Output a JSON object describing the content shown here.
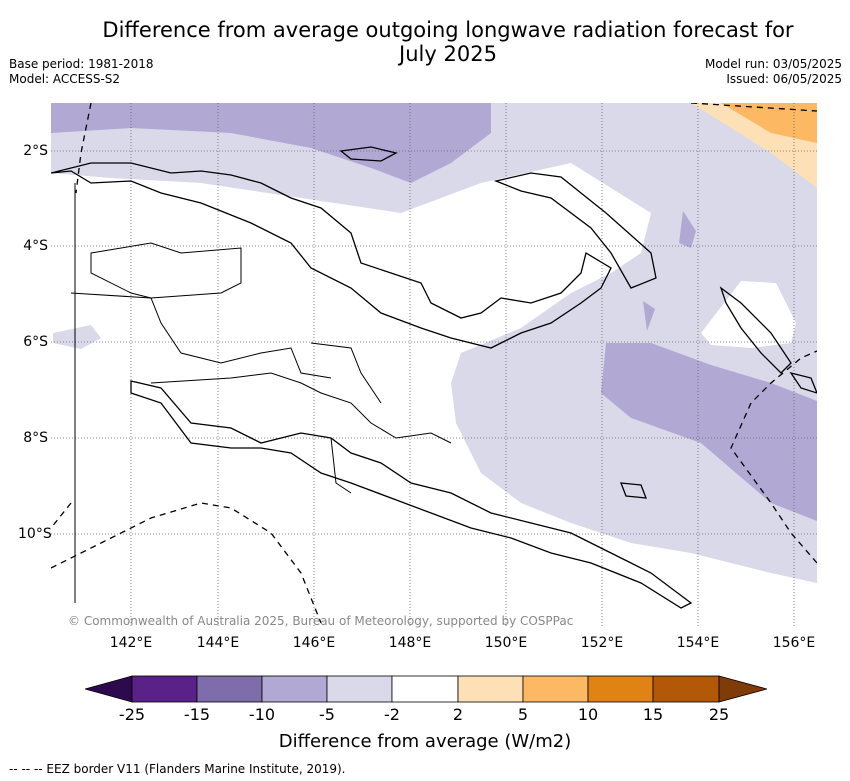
{
  "title": "Difference from average outgoing longwave radiation forecast for July 2025",
  "base_period": "Base period: 1981-2018",
  "model": "Model: ACCESS-S2",
  "model_run": "Model run: 03/05/2025",
  "issued": "Issued: 06/05/2025",
  "copyright": "© Commonwealth of Australia 2025, Bureau of Meteorology, supported by COSPPac",
  "eez_note": "--  --  -- EEZ border V11 (Flanders Marine Institute, 2019).",
  "colorbar_label": "Difference from average (W/m2)",
  "lon_labels": [
    "142°E",
    "144°E",
    "146°E",
    "148°E",
    "150°E",
    "152°E",
    "154°E",
    "156°E"
  ],
  "lat_labels": [
    "2°S",
    "4°S",
    "6°S",
    "8°S",
    "10°S"
  ],
  "colorbar_ticks": [
    "-25",
    "-15",
    "-10",
    "-5",
    "-2",
    "2",
    "5",
    "10",
    "15",
    "25"
  ],
  "colors": {
    "bin_lt_neg25": "#2d0a4e",
    "bin_neg25_neg15": "#5a2288",
    "bin_neg15_neg10": "#7f6dab",
    "bin_neg10_neg5": "#b1a9d3",
    "bin_neg5_neg2": "#d9d9ea",
    "bin_neg2_2": "#ffffff",
    "bin_2_5": "#fde0b6",
    "bin_5_10": "#fdb863",
    "bin_10_15": "#e08214",
    "bin_15_25": "#b35806",
    "bin_gt25": "#7f3b08"
  }
}
